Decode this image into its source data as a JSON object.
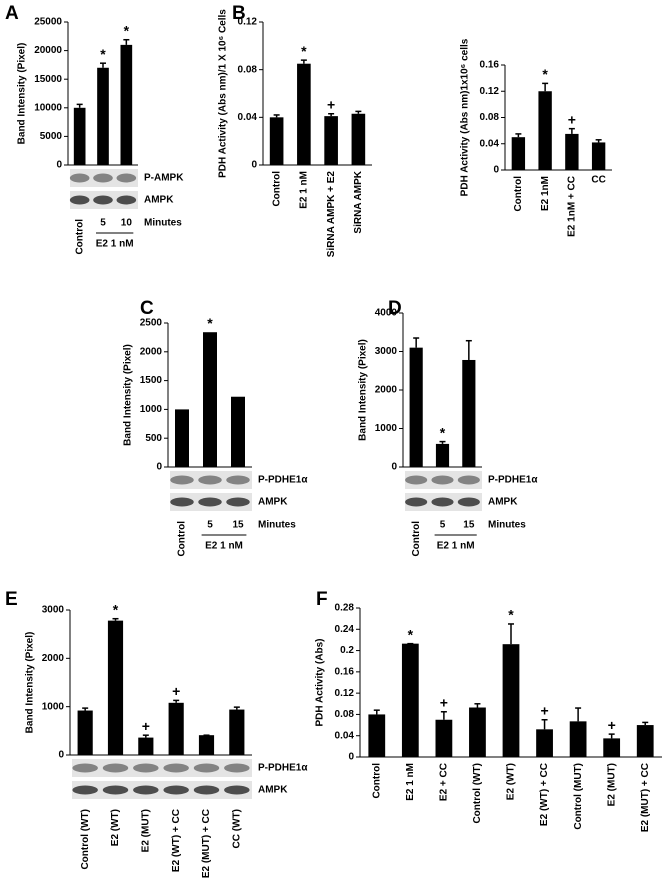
{
  "chart_data": [
    {
      "type": "bar",
      "panel": "A",
      "ylabel": "Band Intensity (Pixel)",
      "categories": [
        "Control",
        "5",
        "10"
      ],
      "values": [
        10000,
        17000,
        21000
      ],
      "errors": [
        600,
        800,
        900
      ],
      "markers": [
        null,
        "*",
        "*"
      ],
      "ylim": [
        0,
        25000
      ],
      "yticks": [
        0,
        5000,
        10000,
        15000,
        20000,
        25000
      ],
      "blot_labels": [
        "P-AMPK",
        "AMPK"
      ],
      "x_unit_label": "Minutes",
      "x_group_label": "E2 1 nM",
      "color": "#000000"
    },
    {
      "type": "bar",
      "panel": "B",
      "ylabel": "PDH Activity (Abs nm)/1 X 10⁶ Cells",
      "categories": [
        "Control",
        "E2 1 nM",
        "SiRNA AMPK + E2",
        "SiRNA AMPK"
      ],
      "values": [
        0.04,
        0.085,
        0.041,
        0.043
      ],
      "errors": [
        0.002,
        0.003,
        0.002,
        0.002
      ],
      "markers": [
        null,
        "*",
        "+",
        null
      ],
      "ylim": [
        0,
        0.12
      ],
      "yticks": [
        0,
        0.04,
        0.08,
        0.12
      ],
      "color": "#000000"
    },
    {
      "type": "bar",
      "ylabel": "PDH Activity (Abs nm)1x10⁶ cells",
      "categories": [
        "Control",
        "E2 1nM",
        "E2 1nM + CC",
        "CC"
      ],
      "values": [
        0.05,
        0.12,
        0.055,
        0.042
      ],
      "errors": [
        0.005,
        0.012,
        0.008,
        0.004
      ],
      "markers": [
        null,
        "*",
        "+",
        null
      ],
      "ylim": [
        0,
        0.16
      ],
      "yticks": [
        0,
        0.04,
        0.08,
        0.12,
        0.16
      ],
      "color": "#000000"
    },
    {
      "type": "bar",
      "panel": "C",
      "ylabel": "Band Intensity (Pixel)",
      "categories": [
        "Control",
        "5",
        "15"
      ],
      "values": [
        1000,
        2340,
        1220
      ],
      "markers": [
        null,
        "*",
        null
      ],
      "ylim": [
        0,
        2500
      ],
      "yticks": [
        0,
        500,
        1000,
        1500,
        2000,
        2500
      ],
      "blot_labels": [
        "P-PDHE1α",
        "AMPK"
      ],
      "x_unit_label": "Minutes",
      "x_group_label": "E2 1 nM",
      "color": "#000000"
    },
    {
      "type": "bar",
      "panel": "D",
      "ylabel": "Band Intensity (Pixel)",
      "categories": [
        "Control",
        "5",
        "15"
      ],
      "values": [
        3100,
        600,
        2780
      ],
      "errors": [
        250,
        60,
        500
      ],
      "markers": [
        null,
        "*",
        null
      ],
      "ylim": [
        0,
        4000
      ],
      "yticks": [
        0,
        1000,
        2000,
        3000,
        4000
      ],
      "blot_labels": [
        "P-PDHE1α",
        "AMPK"
      ],
      "x_unit_label": "Minutes",
      "x_group_label": "E2 1 nM",
      "color": "#000000"
    },
    {
      "type": "bar",
      "panel": "E",
      "ylabel": "Band Intensity (Pixel)",
      "categories": [
        "Control (WT)",
        "E2 (WT)",
        "E2 (MUT)",
        "E2 (WT) + CC",
        "E2 (MUT) + CC",
        "CC (WT)"
      ],
      "values": [
        920,
        2780,
        360,
        1080,
        410,
        940
      ],
      "errors": [
        50,
        40,
        50,
        50,
        0,
        50
      ],
      "markers": [
        null,
        "*",
        "+",
        "+",
        null,
        null
      ],
      "ylim": [
        0,
        3000
      ],
      "yticks": [
        0,
        1000,
        2000,
        3000
      ],
      "blot_labels": [
        "P-PDHE1α",
        "AMPK"
      ],
      "color": "#000000"
    },
    {
      "type": "bar",
      "panel": "F",
      "ylabel": "PDH Activity (Abs)",
      "categories": [
        "Control",
        "E2 1 nM",
        "E2 + CC",
        "Control (WT)",
        "E2 (WT)",
        "E2 (WT) + CC",
        "Control (MUT)",
        "E2 (MUT)",
        "E2 (MUT) + CC"
      ],
      "values": [
        0.08,
        0.213,
        0.07,
        0.093,
        0.212,
        0.052,
        0.067,
        0.035,
        0.06
      ],
      "errors": [
        0.008,
        0,
        0.015,
        0.007,
        0.038,
        0.018,
        0.025,
        0.008,
        0.005
      ],
      "markers": [
        null,
        "*",
        "+",
        null,
        "*",
        "+",
        null,
        "+",
        null
      ],
      "ylim": [
        0,
        0.28
      ],
      "yticks": [
        0,
        0.04,
        0.08,
        0.12,
        0.16,
        0.2,
        0.24,
        0.28
      ],
      "color": "#000000"
    }
  ]
}
